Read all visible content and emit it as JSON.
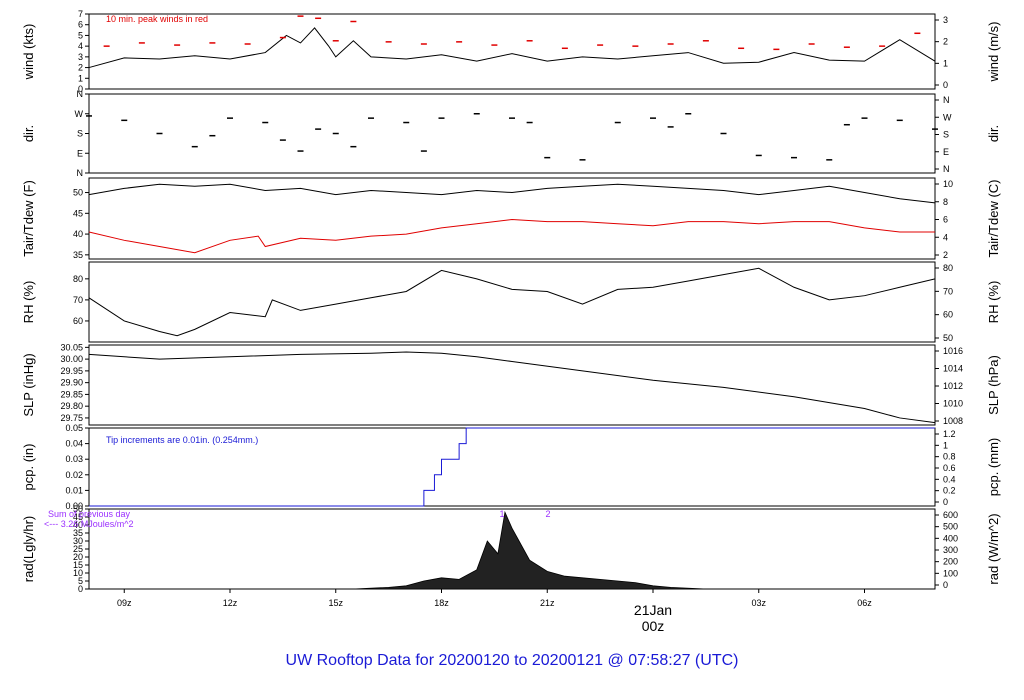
{
  "chart_data": {
    "title": "UW Rooftop Data for 20200120  to  20200121 @ 07:58:27  (UTC)",
    "x_ticks": [
      "09z",
      "12z",
      "15z",
      "18z",
      "21z",
      "03z",
      "06z"
    ],
    "date_label": "21Jan",
    "date_sublabel": "00z",
    "colors": {
      "main": "#000000",
      "red": "#e00000",
      "blue": "#1a1ad6",
      "purple": "#9b30ff",
      "title": "#1a1ad6"
    },
    "panels": [
      {
        "id": "wind",
        "type": "line",
        "ylabel_left": "wind (kts)",
        "ylabel_right": "wind (m/s)",
        "ylim": [
          0,
          7
        ],
        "left_ticks": [
          "0",
          "1",
          "2",
          "3",
          "4",
          "5",
          "6",
          "7"
        ],
        "right_ticks": [
          "0",
          "1",
          "2",
          "3"
        ],
        "annotation": "10 min. peak winds in red",
        "series": [
          {
            "name": "wind",
            "hours": [
              8.0,
              9.0,
              10.0,
              11.0,
              12.0,
              13.0,
              13.6,
              14.0,
              14.4,
              14.8,
              15.0,
              15.5,
              16.0,
              17.0,
              18.0,
              19.0,
              20.0,
              21.0,
              22.0,
              23.0,
              24.0,
              25.0,
              26.0,
              27.0,
              28.0,
              29.0,
              30.0,
              31.0,
              32.0
            ],
            "values": [
              2.0,
              2.9,
              2.8,
              3.1,
              2.8,
              3.4,
              5.0,
              4.3,
              5.7,
              4.0,
              3.0,
              4.5,
              3.0,
              2.8,
              3.2,
              2.6,
              3.3,
              2.6,
              3.0,
              2.8,
              3.1,
              3.4,
              2.4,
              2.5,
              3.4,
              2.7,
              2.6,
              4.6,
              2.6
            ]
          },
          {
            "name": "10 min. peak winds",
            "hours": [
              8.5,
              9.5,
              10.5,
              11.5,
              12.5,
              13.5,
              14.0,
              14.5,
              15.0,
              15.5,
              16.5,
              17.5,
              18.5,
              19.5,
              20.5,
              21.5,
              22.5,
              23.5,
              24.5,
              25.5,
              26.5,
              27.5,
              28.5,
              29.5,
              30.5,
              31.5
            ],
            "values": [
              4.0,
              4.3,
              4.1,
              4.3,
              4.2,
              4.8,
              6.8,
              6.6,
              4.5,
              6.3,
              4.4,
              4.2,
              4.4,
              4.1,
              4.5,
              3.8,
              4.1,
              4.0,
              4.2,
              4.5,
              3.8,
              3.7,
              4.2,
              3.9,
              4.0,
              5.2
            ]
          }
        ]
      },
      {
        "id": "dir",
        "type": "scatter",
        "ylabel_left": "dir.",
        "ylabel_right": "dir.",
        "ylim": [
          0,
          360
        ],
        "left_ticks": [
          "N",
          "E",
          "S",
          "W",
          "N"
        ],
        "right_ticks": [
          "N",
          "E",
          "S",
          "W",
          "N"
        ],
        "series": [
          {
            "name": "dir",
            "hours": [
              8.0,
              9.0,
              10.0,
              11.0,
              11.5,
              12.0,
              13.0,
              13.5,
              14.0,
              14.5,
              15.0,
              15.5,
              16.0,
              17.0,
              17.5,
              18.0,
              19.0,
              20.0,
              20.5,
              21.0,
              22.0,
              23.0,
              24.0,
              24.5,
              25.0,
              26.0,
              27.0,
              28.0,
              29.0,
              29.5,
              30.0,
              31.0,
              32.0
            ],
            "values": [
              260,
              240,
              180,
              120,
              170,
              250,
              230,
              150,
              100,
              200,
              180,
              120,
              250,
              230,
              100,
              250,
              270,
              250,
              230,
              70,
              60,
              230,
              250,
              210,
              270,
              180,
              80,
              70,
              60,
              220,
              250,
              240,
              200
            ]
          }
        ]
      },
      {
        "id": "temp",
        "type": "line",
        "ylabel_left": "Tair/Tdew (F)",
        "ylabel_right": "Tair/Tdew (C)",
        "ylim": [
          34,
          53.5
        ],
        "left_ticks": [
          "35",
          "40",
          "45",
          "50"
        ],
        "right_ticks": [
          "2",
          "4",
          "6",
          "8",
          "10"
        ],
        "series": [
          {
            "name": "Tair",
            "hours": [
              8.0,
              9.0,
              10.0,
              11.0,
              12.0,
              13.0,
              14.0,
              15.0,
              16.0,
              17.0,
              18.0,
              19.0,
              20.0,
              21.0,
              22.0,
              23.0,
              24.0,
              25.0,
              26.0,
              27.0,
              28.0,
              29.0,
              30.0,
              31.0,
              32.0
            ],
            "values": [
              49.5,
              51.0,
              52.0,
              51.5,
              52.0,
              50.5,
              51.0,
              49.5,
              50.5,
              50.0,
              49.5,
              50.5,
              50.0,
              51.0,
              51.5,
              52.0,
              51.5,
              51.0,
              50.5,
              49.5,
              50.5,
              51.5,
              50.0,
              48.5,
              47.5
            ]
          },
          {
            "name": "Tdew",
            "hours": [
              8.0,
              9.0,
              10.0,
              11.0,
              12.0,
              12.8,
              13.0,
              14.0,
              15.0,
              16.0,
              17.0,
              18.0,
              19.0,
              20.0,
              21.0,
              22.0,
              23.0,
              24.0,
              25.0,
              26.0,
              27.0,
              28.0,
              29.0,
              30.0,
              31.0,
              32.0
            ],
            "values": [
              40.5,
              38.5,
              37.0,
              35.5,
              38.5,
              39.5,
              37.0,
              39.0,
              38.5,
              39.5,
              40.0,
              41.5,
              42.5,
              43.5,
              43.0,
              43.0,
              42.5,
              42.0,
              43.0,
              43.0,
              42.5,
              43.0,
              43.0,
              41.5,
              40.5,
              40.5
            ]
          }
        ]
      },
      {
        "id": "rh",
        "type": "line",
        "ylabel_left": "RH (%)",
        "ylabel_right": "RH (%)",
        "ylim": [
          50,
          88
        ],
        "left_ticks": [
          "60",
          "70",
          "80"
        ],
        "right_ticks": [
          "50",
          "60",
          "70",
          "80"
        ],
        "series": [
          {
            "name": "RH",
            "hours": [
              8.0,
              9.0,
              10.0,
              10.5,
              11.0,
              12.0,
              13.0,
              13.2,
              14.0,
              15.0,
              16.0,
              17.0,
              18.0,
              19.0,
              20.0,
              21.0,
              22.0,
              23.0,
              24.0,
              25.0,
              26.0,
              27.0,
              28.0,
              29.0,
              30.0,
              31.0,
              32.0
            ],
            "values": [
              71,
              60,
              55,
              53,
              56,
              64,
              62,
              70,
              65,
              68,
              71,
              74,
              84,
              80,
              75,
              74,
              68,
              75,
              76,
              79,
              82,
              85,
              76,
              70,
              72,
              76,
              80
            ]
          }
        ]
      },
      {
        "id": "slp",
        "type": "line",
        "ylabel_left": "SLP (inHg)",
        "ylabel_right": "SLP (hPa)",
        "ylim": [
          29.72,
          30.06
        ],
        "left_ticks": [
          "29.75",
          "29.80",
          "29.85",
          "29.90",
          "29.95",
          "30.00",
          "30.05"
        ],
        "right_ticks": [
          "1008",
          "1010",
          "1012",
          "1014",
          "1016"
        ],
        "series": [
          {
            "name": "SLP",
            "hours": [
              8.0,
              10.0,
              12.0,
              14.0,
              16.0,
              17.0,
              18.0,
              19.0,
              20.0,
              22.0,
              24.0,
              26.0,
              28.0,
              30.0,
              31.0,
              32.0
            ],
            "values": [
              30.02,
              30.0,
              30.01,
              30.02,
              30.025,
              30.03,
              30.025,
              30.01,
              29.99,
              29.95,
              29.91,
              29.88,
              29.84,
              29.79,
              29.75,
              29.73
            ]
          }
        ]
      },
      {
        "id": "pcp",
        "type": "line",
        "ylabel_left": "pcp. (in)",
        "ylabel_right": "pcp. (mm)",
        "ylim": [
          0,
          0.05
        ],
        "left_ticks": [
          "0.00",
          "0.01",
          "0.02",
          "0.03",
          "0.04",
          "0.05"
        ],
        "right_ticks": [
          "0",
          "0.2",
          "0.4",
          "0.6",
          "0.8",
          "1",
          "1.2"
        ],
        "annotation": "Tip increments are 0.01in. (0.254mm.)",
        "series": [
          {
            "name": "pcp",
            "hours": [
              8.0,
              17.5,
              17.5,
              17.8,
              17.8,
              18.0,
              18.0,
              18.5,
              18.5,
              18.7,
              18.7,
              32.0
            ],
            "values": [
              0,
              0,
              0.01,
              0.01,
              0.02,
              0.02,
              0.03,
              0.03,
              0.04,
              0.04,
              0.05,
              0.05
            ]
          }
        ]
      },
      {
        "id": "rad",
        "type": "area",
        "ylabel_left": "rad(Lgly/hr)",
        "ylabel_right": "rad (W/m^2)",
        "ylim": [
          0,
          50
        ],
        "left_ticks": [
          "0",
          "5",
          "10",
          "15",
          "20",
          "25",
          "30",
          "35",
          "40",
          "45",
          "50"
        ],
        "right_ticks": [
          "0",
          "100",
          "200",
          "300",
          "400",
          "500",
          "600"
        ],
        "annotation_line1": "Sum of previous day",
        "annotation_line2": "<--- 3.26 MJoules/m^2",
        "peak_labels": [
          "1",
          "2"
        ],
        "series": [
          {
            "name": "rad",
            "hours": [
              15.5,
              16.5,
              17.0,
              17.5,
              18.0,
              18.5,
              19.0,
              19.3,
              19.6,
              19.8,
              20.0,
              20.2,
              20.5,
              21.0,
              21.5,
              22.0,
              22.5,
              23.0,
              23.5,
              24.0,
              24.5,
              25.5
            ],
            "values": [
              0,
              1,
              2,
              5,
              7,
              6,
              12,
              30,
              22,
              48,
              38,
              30,
              18,
              11,
              8,
              7,
              6,
              5,
              4,
              2,
              1,
              0
            ]
          }
        ]
      }
    ]
  }
}
